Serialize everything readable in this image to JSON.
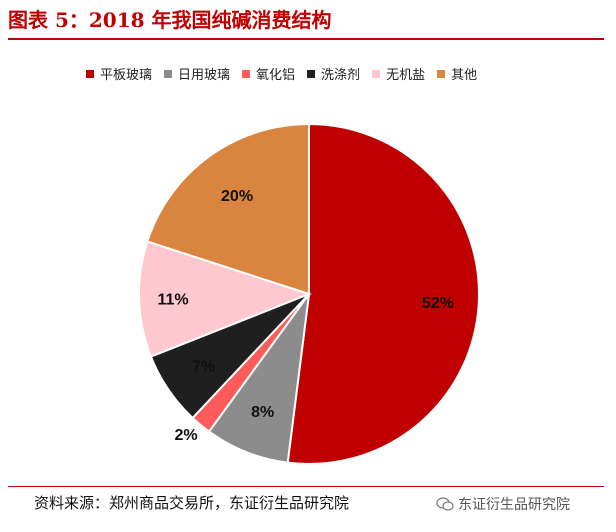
{
  "title": "图表 5：2018 年我国纯碱消费结构",
  "source": "资料来源：郑州商品交易所，东证衍生品研究院",
  "watermark": {
    "text": "东证衍生品研究院",
    "icon": "wechat-icon"
  },
  "chart_data": {
    "type": "pie",
    "legend_position": "top",
    "start_angle_deg": 0,
    "direction": "clockwise",
    "slices": [
      {
        "name": "平板玻璃",
        "value": 52,
        "label": "52%",
        "color": "#c00000"
      },
      {
        "name": "日用玻璃",
        "value": 8,
        "label": "8%",
        "color": "#8c8c8c"
      },
      {
        "name": "氧化铝",
        "value": 2,
        "label": "2%",
        "color": "#ff5b5b"
      },
      {
        "name": "洗涤剂",
        "value": 7,
        "label": "7%",
        "color": "#1f1f1f"
      },
      {
        "name": "无机盐",
        "value": 11,
        "label": "11%",
        "color": "#ffc7ce"
      },
      {
        "name": "其他",
        "value": 20,
        "label": "20%",
        "color": "#d9843f"
      }
    ]
  }
}
